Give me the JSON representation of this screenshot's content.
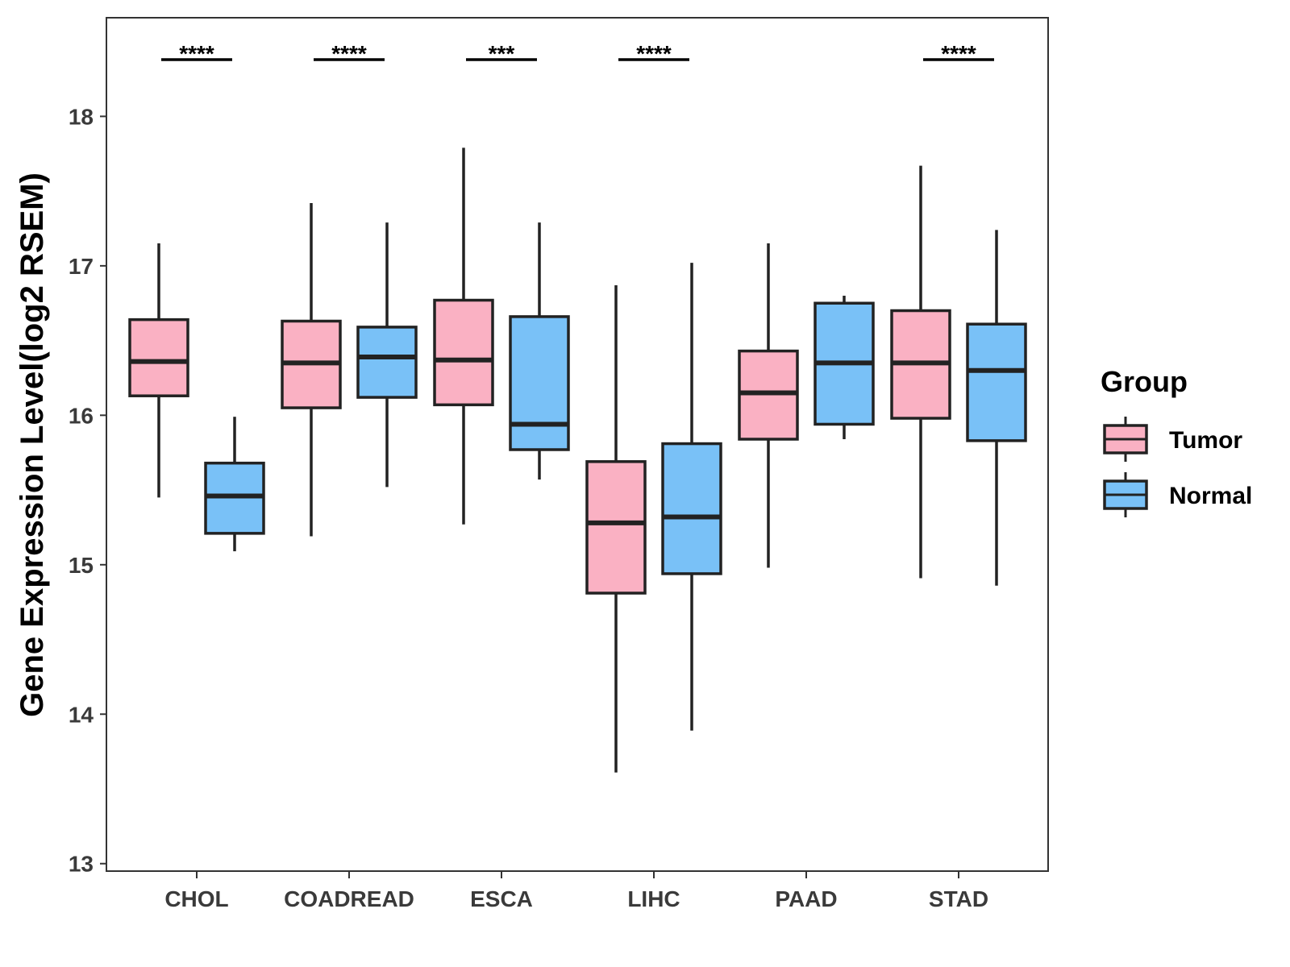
{
  "chart_data": {
    "type": "boxplot",
    "ylabel": "Gene Expression Level(log2 RSEM)",
    "xlabel": "",
    "ylim": [
      12.95,
      18.66
    ],
    "yticks": [
      13,
      14,
      15,
      16,
      17,
      18
    ],
    "categories": [
      "CHOL",
      "COADREAD",
      "ESCA",
      "LIHC",
      "PAAD",
      "STAD"
    ],
    "legend": {
      "title": "Group",
      "position": "right",
      "items": [
        {
          "name": "Tumor",
          "color": "#FAB1C3"
        },
        {
          "name": "Normal",
          "color": "#79C1F7"
        }
      ]
    },
    "series": [
      {
        "name": "Tumor",
        "color": "#FAB1C3",
        "boxes": [
          {
            "category": "CHOL",
            "min": 15.45,
            "q1": 16.13,
            "median": 16.36,
            "q3": 16.64,
            "max": 17.15
          },
          {
            "category": "COADREAD",
            "min": 15.19,
            "q1": 16.05,
            "median": 16.35,
            "q3": 16.63,
            "max": 17.42
          },
          {
            "category": "ESCA",
            "min": 15.27,
            "q1": 16.07,
            "median": 16.37,
            "q3": 16.77,
            "max": 17.79
          },
          {
            "category": "LIHC",
            "min": 13.61,
            "q1": 14.81,
            "median": 15.28,
            "q3": 15.69,
            "max": 16.87
          },
          {
            "category": "PAAD",
            "min": 14.98,
            "q1": 15.84,
            "median": 16.15,
            "q3": 16.43,
            "max": 17.15
          },
          {
            "category": "STAD",
            "min": 14.91,
            "q1": 15.98,
            "median": 16.35,
            "q3": 16.7,
            "max": 17.67
          }
        ]
      },
      {
        "name": "Normal",
        "color": "#79C1F7",
        "boxes": [
          {
            "category": "CHOL",
            "min": 15.09,
            "q1": 15.21,
            "median": 15.46,
            "q3": 15.68,
            "max": 15.99
          },
          {
            "category": "COADREAD",
            "min": 15.52,
            "q1": 16.12,
            "median": 16.39,
            "q3": 16.59,
            "max": 17.29
          },
          {
            "category": "ESCA",
            "min": 15.57,
            "q1": 15.77,
            "median": 15.94,
            "q3": 16.66,
            "max": 17.29
          },
          {
            "category": "LIHC",
            "min": 13.89,
            "q1": 14.94,
            "median": 15.32,
            "q3": 15.81,
            "max": 17.02
          },
          {
            "category": "PAAD",
            "min": 15.84,
            "q1": 15.94,
            "median": 16.35,
            "q3": 16.75,
            "max": 16.8
          },
          {
            "category": "STAD",
            "min": 14.86,
            "q1": 15.83,
            "median": 16.3,
            "q3": 16.61,
            "max": 17.24
          }
        ]
      }
    ],
    "significance": [
      {
        "category": "CHOL",
        "label": "****"
      },
      {
        "category": "COADREAD",
        "label": "****"
      },
      {
        "category": "ESCA",
        "label": "***"
      },
      {
        "category": "LIHC",
        "label": "****"
      },
      {
        "category": "PAAD",
        "label": ""
      },
      {
        "category": "STAD",
        "label": "****"
      }
    ]
  }
}
